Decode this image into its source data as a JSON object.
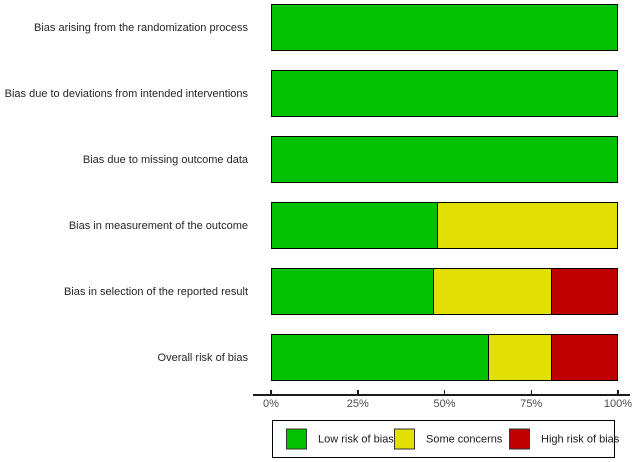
{
  "chart_data": {
    "type": "bar",
    "orientation": "horizontal",
    "stacked": true,
    "title": "",
    "xlabel": "",
    "ylabel": "",
    "units": "percent",
    "xlim": [
      0,
      100
    ],
    "x_tick_labels": [
      "0%",
      "25%",
      "50%",
      "75%",
      "100%"
    ],
    "grid": false,
    "legend_position": "bottom",
    "categories": [
      "Bias arising from the randomization process",
      "Bias due to deviations from intended interventions",
      "Bias due to missing outcome data",
      "Bias in measurement of the outcome",
      "Bias in selection of the reported result",
      "Overall risk of bias"
    ],
    "series": [
      {
        "name": "Low risk of bias",
        "color": "#02C100",
        "values": [
          100,
          100,
          100,
          48,
          47,
          63
        ]
      },
      {
        "name": "Some concerns",
        "color": "#E2DF07",
        "values": [
          0,
          0,
          0,
          52,
          34,
          18
        ]
      },
      {
        "name": "High risk of bias",
        "color": "#BF0000",
        "values": [
          0,
          0,
          0,
          0,
          19,
          19
        ]
      }
    ],
    "bar_border_color": "#000000",
    "axis_line_color": "#1a1a1a",
    "tick_label_color": "#4d4d4d"
  }
}
